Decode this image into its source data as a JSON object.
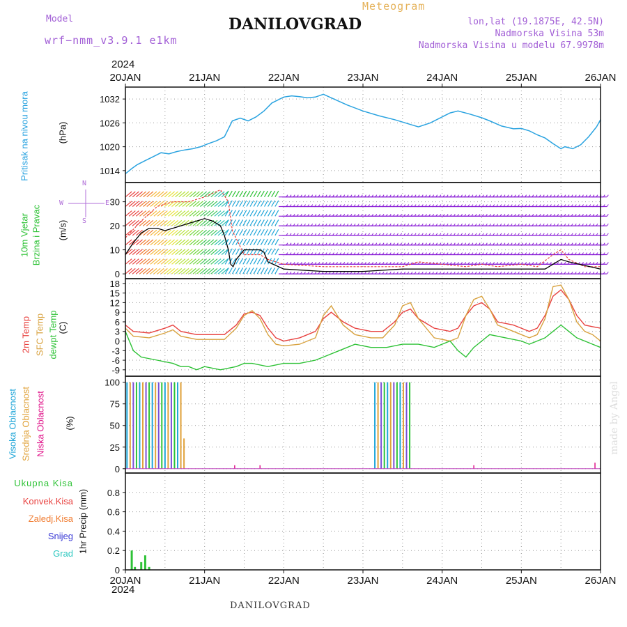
{
  "header": {
    "model_label": "Model",
    "model_name": "wrf−nmm_v3.9.1  e1km",
    "title": "DANILOVGRAD",
    "meteogram": "Meteogram",
    "lonlat": "lon,lat (19.1875E, 42.5N)",
    "elevation": "Nadmorska Visina 53m",
    "model_elevation": "Nadmorska Visina u modelu 67.9978m"
  },
  "footer": {
    "station": "DANILOVGRAD",
    "credit": "made by Angel"
  },
  "colors": {
    "pressure": "#2aa3e0",
    "temp2m": "#e8413f",
    "sfc_temp": "#d8a23f",
    "dewpoint": "#2ec236",
    "high_cloud": "#1ea5d8",
    "mid_cloud": "#e0a23a",
    "low_cloud": "#e0158a",
    "precip_total": "#2ec236",
    "barb_main": "#8a1fd6",
    "gust": "#e8413f",
    "wind_line": "#000000",
    "grid": "#999999"
  },
  "chart_data": {
    "type": "line",
    "time_axis": {
      "year": "2024",
      "ticks": [
        "20JAN",
        "21JAN",
        "22JAN",
        "23JAN",
        "24JAN",
        "25JAN",
        "26JAN"
      ],
      "range_days": [
        0,
        6
      ]
    },
    "panels": [
      {
        "id": "pressure",
        "labels": [
          "Pritisak na nivou mora"
        ],
        "unit": "(hPa)",
        "ylim": [
          1011,
          1035
        ],
        "yticks": [
          1014,
          1020,
          1026,
          1032
        ],
        "series": [
          {
            "name": "Pritisak na nivou mora",
            "x": [
              0,
              0.08,
              0.15,
              0.25,
              0.35,
              0.45,
              0.55,
              0.65,
              0.75,
              0.85,
              0.95,
              1.05,
              1.15,
              1.25,
              1.3,
              1.35,
              1.45,
              1.55,
              1.65,
              1.75,
              1.85,
              2.0,
              2.1,
              2.2,
              2.3,
              2.4,
              2.5,
              2.6,
              2.8,
              3.0,
              3.2,
              3.4,
              3.5,
              3.6,
              3.7,
              3.85,
              4.0,
              4.1,
              4.2,
              4.35,
              4.5,
              4.6,
              4.75,
              4.9,
              5.0,
              5.1,
              5.2,
              5.3,
              5.4,
              5.5,
              5.55,
              5.65,
              5.75,
              5.85,
              5.95,
              6.0
            ],
            "y": [
              1013.2,
              1014.5,
              1015.5,
              1016.5,
              1017.5,
              1018.5,
              1018.2,
              1018.8,
              1019.2,
              1019.5,
              1020.0,
              1020.8,
              1021.5,
              1022.5,
              1024.5,
              1026.5,
              1027.2,
              1026.5,
              1027.5,
              1029.0,
              1031.0,
              1032.5,
              1032.8,
              1032.6,
              1032.3,
              1032.5,
              1033.2,
              1032.3,
              1030.5,
              1029.0,
              1027.8,
              1026.8,
              1026.2,
              1025.6,
              1025.0,
              1026.0,
              1027.5,
              1028.5,
              1029.0,
              1028.2,
              1027.3,
              1026.5,
              1025.2,
              1024.5,
              1024.6,
              1024.0,
              1023.0,
              1022.2,
              1020.8,
              1019.5,
              1020.0,
              1019.5,
              1020.5,
              1022.5,
              1025.0,
              1026.8
            ]
          }
        ]
      },
      {
        "id": "wind",
        "labels": [
          "10m Vjetar",
          "Brzina i Pravac"
        ],
        "unit": "(m/s)",
        "ylim": [
          -2,
          38
        ],
        "yticks": [
          0,
          10,
          20,
          30
        ],
        "compass": {
          "n": "N",
          "s": "S",
          "e": "E",
          "w": "W"
        },
        "series": [
          {
            "name": "wind speed",
            "x": [
              0,
              0.1,
              0.2,
              0.3,
              0.4,
              0.5,
              0.6,
              0.7,
              0.8,
              0.9,
              1.0,
              1.1,
              1.2,
              1.25,
              1.3,
              1.33,
              1.36,
              1.4,
              1.5,
              1.6,
              1.7,
              1.75,
              1.8,
              2.0,
              2.5,
              3.0,
              3.5,
              4.0,
              4.5,
              5.0,
              5.2,
              5.3,
              5.4,
              5.5,
              5.6,
              6.0
            ],
            "y": [
              8,
              13,
              17,
              19,
              19,
              18,
              19,
              20,
              21,
              22,
              23,
              22,
              20,
              16,
              10,
              4,
              3,
              6,
              10,
              10,
              10,
              9,
              5,
              2,
              1,
              1,
              2,
              2,
              2,
              2,
              2,
              2,
              4,
              6,
              5,
              2
            ]
          },
          {
            "name": "wind gust",
            "x": [
              0,
              0.2,
              0.4,
              0.6,
              0.8,
              1.0,
              1.2,
              1.3,
              1.35,
              1.5,
              1.7,
              1.8,
              2.0,
              2.5,
              3.0,
              3.5,
              3.7,
              4.0,
              4.3,
              4.5,
              4.7,
              5.0,
              5.2,
              5.4,
              5.5,
              5.6,
              5.8,
              6.0
            ],
            "y": [
              15,
              22,
              28,
              30,
              30,
              32,
              35,
              30,
              18,
              8,
              8,
              6,
              4,
              3,
              3,
              3,
              5,
              4,
              3,
              4,
              3,
              4,
              3,
              8,
              10,
              6,
              3,
              3
            ]
          }
        ]
      },
      {
        "id": "temperature",
        "labels": [
          "2m Temp",
          "SFC Temp",
          "dewpt Temp"
        ],
        "unit": "(C)",
        "ylim": [
          -11,
          19.5
        ],
        "yticks": [
          -9,
          -6,
          -3,
          0,
          3,
          6,
          9,
          12,
          15,
          18
        ],
        "series": [
          {
            "name": "2m Temp",
            "x": [
              0,
              0.1,
              0.3,
              0.5,
              0.6,
              0.7,
              0.9,
              1.1,
              1.25,
              1.4,
              1.5,
              1.6,
              1.7,
              1.8,
              1.9,
              2.0,
              2.2,
              2.4,
              2.5,
              2.6,
              2.75,
              2.9,
              3.1,
              3.25,
              3.4,
              3.5,
              3.6,
              3.7,
              3.9,
              4.1,
              4.2,
              4.3,
              4.4,
              4.5,
              4.6,
              4.7,
              4.9,
              5.0,
              5.1,
              5.2,
              5.3,
              5.4,
              5.5,
              5.6,
              5.7,
              5.8,
              5.9,
              6.0
            ],
            "y": [
              5,
              3,
              2.5,
              4,
              5,
              3,
              2,
              2,
              2,
              5,
              8.5,
              9,
              8,
              4,
              1,
              0,
              1,
              3,
              7,
              9,
              6,
              4,
              3,
              3,
              6,
              9,
              10,
              7,
              4,
              3,
              4,
              8,
              11,
              12,
              10,
              6,
              5,
              4,
              3,
              4,
              8,
              14,
              16,
              13,
              8,
              5,
              4.5,
              4
            ]
          },
          {
            "name": "SFC Temp",
            "x": [
              0,
              0.1,
              0.3,
              0.5,
              0.6,
              0.7,
              0.9,
              1.1,
              1.25,
              1.4,
              1.5,
              1.6,
              1.7,
              1.8,
              1.9,
              2.0,
              2.2,
              2.4,
              2.5,
              2.6,
              2.75,
              2.9,
              3.1,
              3.25,
              3.4,
              3.5,
              3.6,
              3.7,
              3.9,
              4.1,
              4.2,
              4.3,
              4.4,
              4.5,
              4.6,
              4.7,
              4.9,
              5.0,
              5.1,
              5.2,
              5.3,
              5.4,
              5.5,
              5.6,
              5.7,
              5.8,
              5.9,
              6.0
            ],
            "y": [
              4,
              1.5,
              1,
              2.5,
              3.5,
              1.5,
              0.5,
              0.5,
              0.5,
              4,
              8,
              9.5,
              7,
              2,
              -1,
              -1.5,
              -1,
              1,
              8,
              11,
              5,
              2,
              1,
              1,
              5,
              11,
              12,
              7,
              1,
              0,
              1,
              8,
              13,
              14,
              10,
              5,
              3,
              2,
              1,
              2,
              7,
              17,
              17.5,
              13,
              6,
              3,
              2,
              0
            ]
          },
          {
            "name": "dewpt Temp",
            "x": [
              0,
              0.1,
              0.2,
              0.4,
              0.6,
              0.7,
              0.8,
              0.9,
              1.0,
              1.2,
              1.4,
              1.5,
              1.6,
              1.8,
              2.0,
              2.2,
              2.4,
              2.5,
              2.7,
              2.9,
              3.1,
              3.3,
              3.5,
              3.7,
              3.9,
              4.1,
              4.2,
              4.3,
              4.4,
              4.5,
              4.6,
              4.8,
              5.0,
              5.1,
              5.2,
              5.3,
              5.4,
              5.5,
              5.6,
              5.7,
              5.8,
              5.9,
              6.0
            ],
            "y": [
              3,
              -3,
              -5,
              -6,
              -7,
              -8,
              -8,
              -9,
              -8,
              -9,
              -8,
              -7,
              -7,
              -8,
              -7,
              -7,
              -6,
              -5,
              -3,
              -1,
              -2,
              -2,
              -1,
              -1,
              -2,
              0,
              -3,
              -5,
              -2,
              0,
              2,
              1,
              0,
              -1,
              0,
              1,
              3,
              5,
              3,
              1,
              0,
              -1,
              -2
            ]
          }
        ]
      },
      {
        "id": "cloud",
        "labels": [
          "Visoka Oblacnost",
          "Srednja Oblacnost",
          "Niska Oblacnost"
        ],
        "unit": "(%)",
        "ylim": [
          -5,
          107
        ],
        "yticks": [
          0,
          25,
          50,
          75,
          100
        ],
        "bar_groups": [
          {
            "x_start": 0.02,
            "x_end": 0.72,
            "step": 0.04,
            "value": 100
          },
          {
            "x_start": 3.15,
            "x_end": 3.6,
            "step": 0.04,
            "value": 100
          }
        ],
        "extra_bars": [
          {
            "x": 0.74,
            "value": 35
          }
        ],
        "low_marks": [
          {
            "x": 1.38,
            "value": 4
          },
          {
            "x": 1.7,
            "value": 4
          },
          {
            "x": 4.4,
            "value": 4
          },
          {
            "x": 5.93,
            "value": 7
          }
        ]
      },
      {
        "id": "precip",
        "labels": [
          "Ukupna Kisa",
          "Konvek.Kisa",
          "Zaledj.Kisa",
          "Snijeg",
          "Grad"
        ],
        "unit": "1hr Precip (mm)",
        "ylim": [
          0,
          1.0
        ],
        "yticks": [
          0,
          0.2,
          0.4,
          0.6,
          0.8
        ],
        "bars": [
          {
            "x": 0.08,
            "value": 0.2
          },
          {
            "x": 0.12,
            "value": 0.03
          },
          {
            "x": 0.2,
            "value": 0.08
          },
          {
            "x": 0.25,
            "value": 0.15
          },
          {
            "x": 0.3,
            "value": 0.03
          }
        ]
      }
    ]
  }
}
